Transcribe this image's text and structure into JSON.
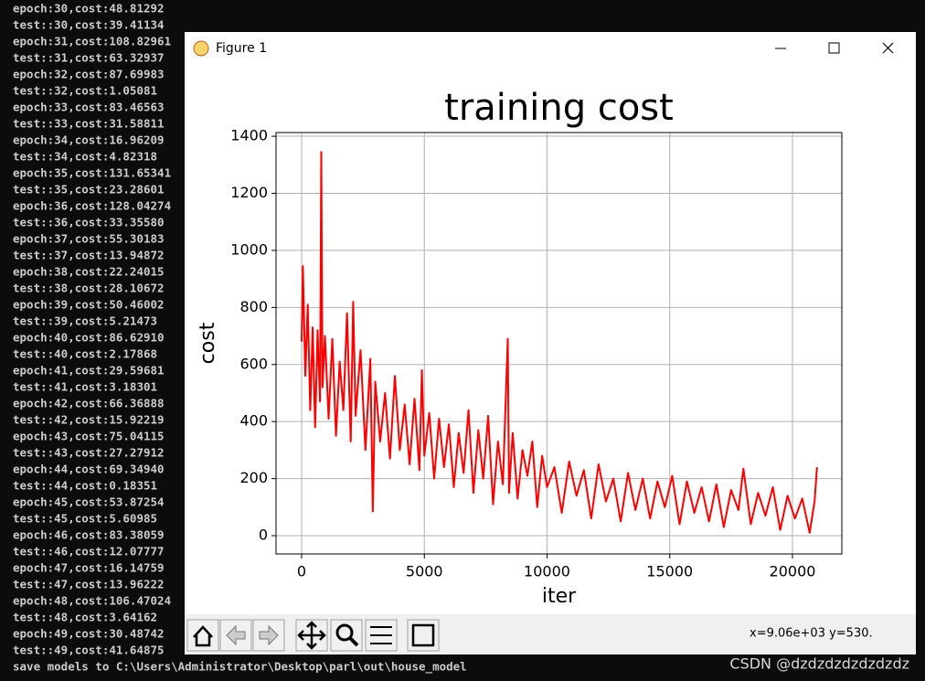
{
  "console": {
    "lines": [
      "epoch:30,cost:48.81292",
      "test::30,cost:39.41134",
      "epoch:31,cost:108.82961",
      "test::31,cost:63.32937",
      "epoch:32,cost:87.69983",
      "test::32,cost:1.05081",
      "epoch:33,cost:83.46563",
      "test::33,cost:31.58811",
      "epoch:34,cost:16.96209",
      "test::34,cost:4.82318",
      "epoch:35,cost:131.65341",
      "test::35,cost:23.28601",
      "epoch:36,cost:128.04274",
      "test::36,cost:33.35580",
      "epoch:37,cost:55.30183",
      "test::37,cost:13.94872",
      "epoch:38,cost:22.24015",
      "test::38,cost:28.10672",
      "epoch:39,cost:50.46002",
      "test::39,cost:5.21473",
      "epoch:40,cost:86.62910",
      "test::40,cost:2.17868",
      "epoch:41,cost:29.59681",
      "test::41,cost:3.18301",
      "epoch:42,cost:66.36888",
      "test::42,cost:15.92219",
      "epoch:43,cost:75.04115",
      "test::43,cost:27.27912",
      "epoch:44,cost:69.34940",
      "test::44,cost:0.18351",
      "epoch:45,cost:53.87254",
      "test::45,cost:5.60985",
      "epoch:46,cost:83.38059",
      "test::46,cost:12.07777",
      "epoch:47,cost:16.14759",
      "test::47,cost:13.96222",
      "epoch:48,cost:106.47024",
      "test::48,cost:3.64162",
      "epoch:49,cost:30.48742",
      "test::49,cost:41.64875",
      "save models to C:\\Users\\Administrator\\Desktop\\parl\\out\\house_model"
    ],
    "cursor": "_"
  },
  "window": {
    "title": "Figure 1",
    "status": "x=9.06e+03 y=530."
  },
  "watermark": "CSDN @dzdzdzdzdzdzdz",
  "chart_data": {
    "type": "line",
    "title": "training cost",
    "xlabel": "iter",
    "ylabel": "cost",
    "color": "#ff0000",
    "grid": true,
    "xlim": [
      -1043,
      22011
    ],
    "ylim": [
      -64,
      1413
    ],
    "xticks": [
      0,
      5000,
      10000,
      15000,
      20000
    ],
    "yticks": [
      0,
      200,
      400,
      600,
      800,
      1000,
      1200,
      1400
    ],
    "x": [
      0,
      50,
      150,
      250,
      350,
      450,
      550,
      650,
      750,
      800,
      850,
      950,
      1100,
      1250,
      1400,
      1550,
      1700,
      1850,
      2000,
      2100,
      2200,
      2400,
      2600,
      2800,
      2900,
      3000,
      3200,
      3400,
      3600,
      3800,
      4000,
      4200,
      4400,
      4600,
      4800,
      4900,
      5000,
      5200,
      5400,
      5600,
      5800,
      6000,
      6200,
      6400,
      6600,
      6800,
      7000,
      7200,
      7400,
      7600,
      7800,
      8000,
      8200,
      8400,
      8450,
      8600,
      8800,
      9000,
      9200,
      9400,
      9600,
      9800,
      10000,
      10300,
      10600,
      10900,
      11200,
      11500,
      11800,
      12100,
      12400,
      12700,
      13000,
      13300,
      13600,
      13900,
      14200,
      14500,
      14800,
      15100,
      15400,
      15700,
      16000,
      16300,
      16600,
      16900,
      17200,
      17500,
      17800,
      18000,
      18300,
      18600,
      18900,
      19200,
      19500,
      19800,
      20100,
      20400,
      20700,
      20900,
      21000
    ],
    "values": [
      680,
      945,
      560,
      810,
      440,
      730,
      380,
      720,
      470,
      1345,
      520,
      700,
      410,
      690,
      350,
      610,
      440,
      780,
      330,
      820,
      420,
      650,
      300,
      620,
      85,
      540,
      330,
      500,
      270,
      560,
      300,
      460,
      250,
      480,
      230,
      580,
      280,
      430,
      200,
      410,
      240,
      390,
      170,
      360,
      220,
      440,
      150,
      370,
      200,
      420,
      110,
      330,
      180,
      690,
      150,
      360,
      130,
      300,
      210,
      330,
      100,
      280,
      170,
      240,
      80,
      260,
      140,
      230,
      60,
      250,
      120,
      200,
      50,
      220,
      90,
      200,
      60,
      190,
      100,
      210,
      40,
      190,
      80,
      170,
      50,
      180,
      30,
      160,
      90,
      235,
      40,
      150,
      70,
      170,
      20,
      140,
      60,
      130,
      10,
      120,
      240
    ]
  }
}
